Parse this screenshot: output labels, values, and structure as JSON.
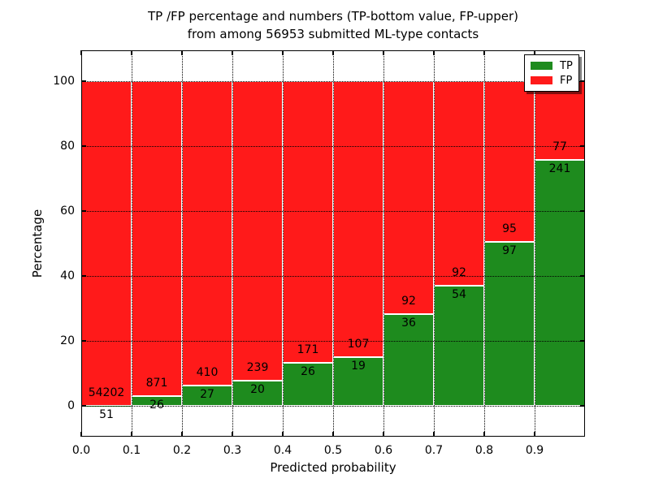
{
  "figure": {
    "title_line1": "TP /FP percentage and numbers (TP-bottom value, FP-upper)",
    "title_line2": "from among 56953 submitted ML-type contacts",
    "background_color": "#ffffff"
  },
  "chart_data": {
    "type": "bar",
    "stacked": true,
    "title": "TP /FP percentage and numbers (TP-bottom value, FP-upper) from among 56953 submitted ML-type contacts",
    "xlabel": "Predicted probability",
    "ylabel": "Percentage",
    "total_contacts": 56953,
    "xlim": [
      0.0,
      1.0
    ],
    "ylim": [
      -9.5,
      109.5
    ],
    "bin_width": 0.1,
    "bin_starts": [
      0.0,
      0.1,
      0.2,
      0.3,
      0.4,
      0.5,
      0.6,
      0.7,
      0.8,
      0.9
    ],
    "x_tick_labels": [
      "0.0",
      "0.1",
      "0.2",
      "0.3",
      "0.4",
      "0.5",
      "0.6",
      "0.7",
      "0.8",
      "0.9"
    ],
    "y_tick_values": [
      0,
      20,
      40,
      60,
      80,
      100
    ],
    "y_tick_labels": [
      "0",
      "20",
      "40",
      "60",
      "80",
      "100"
    ],
    "grid": "dotted black, both axes, drawn above bars",
    "series": [
      {
        "name": "TP",
        "color": "#1e8b1e",
        "counts": [
          51,
          26,
          27,
          20,
          26,
          19,
          36,
          54,
          97,
          241
        ],
        "percent": [
          0.09,
          2.9,
          6.18,
          7.72,
          13.2,
          15.08,
          28.13,
          36.99,
          50.52,
          75.79
        ]
      },
      {
        "name": "FP",
        "color": "#ff1a1a",
        "counts": [
          54202,
          871,
          410,
          239,
          171,
          107,
          92,
          92,
          95,
          77
        ],
        "percent": [
          99.91,
          97.1,
          93.82,
          92.28,
          86.8,
          84.92,
          71.87,
          63.01,
          49.48,
          24.21
        ]
      }
    ],
    "legend": {
      "position": "upper right",
      "entries": [
        {
          "label": "TP",
          "color": "#1e8b1e"
        },
        {
          "label": "FP",
          "color": "#ff1a1a"
        }
      ]
    }
  }
}
